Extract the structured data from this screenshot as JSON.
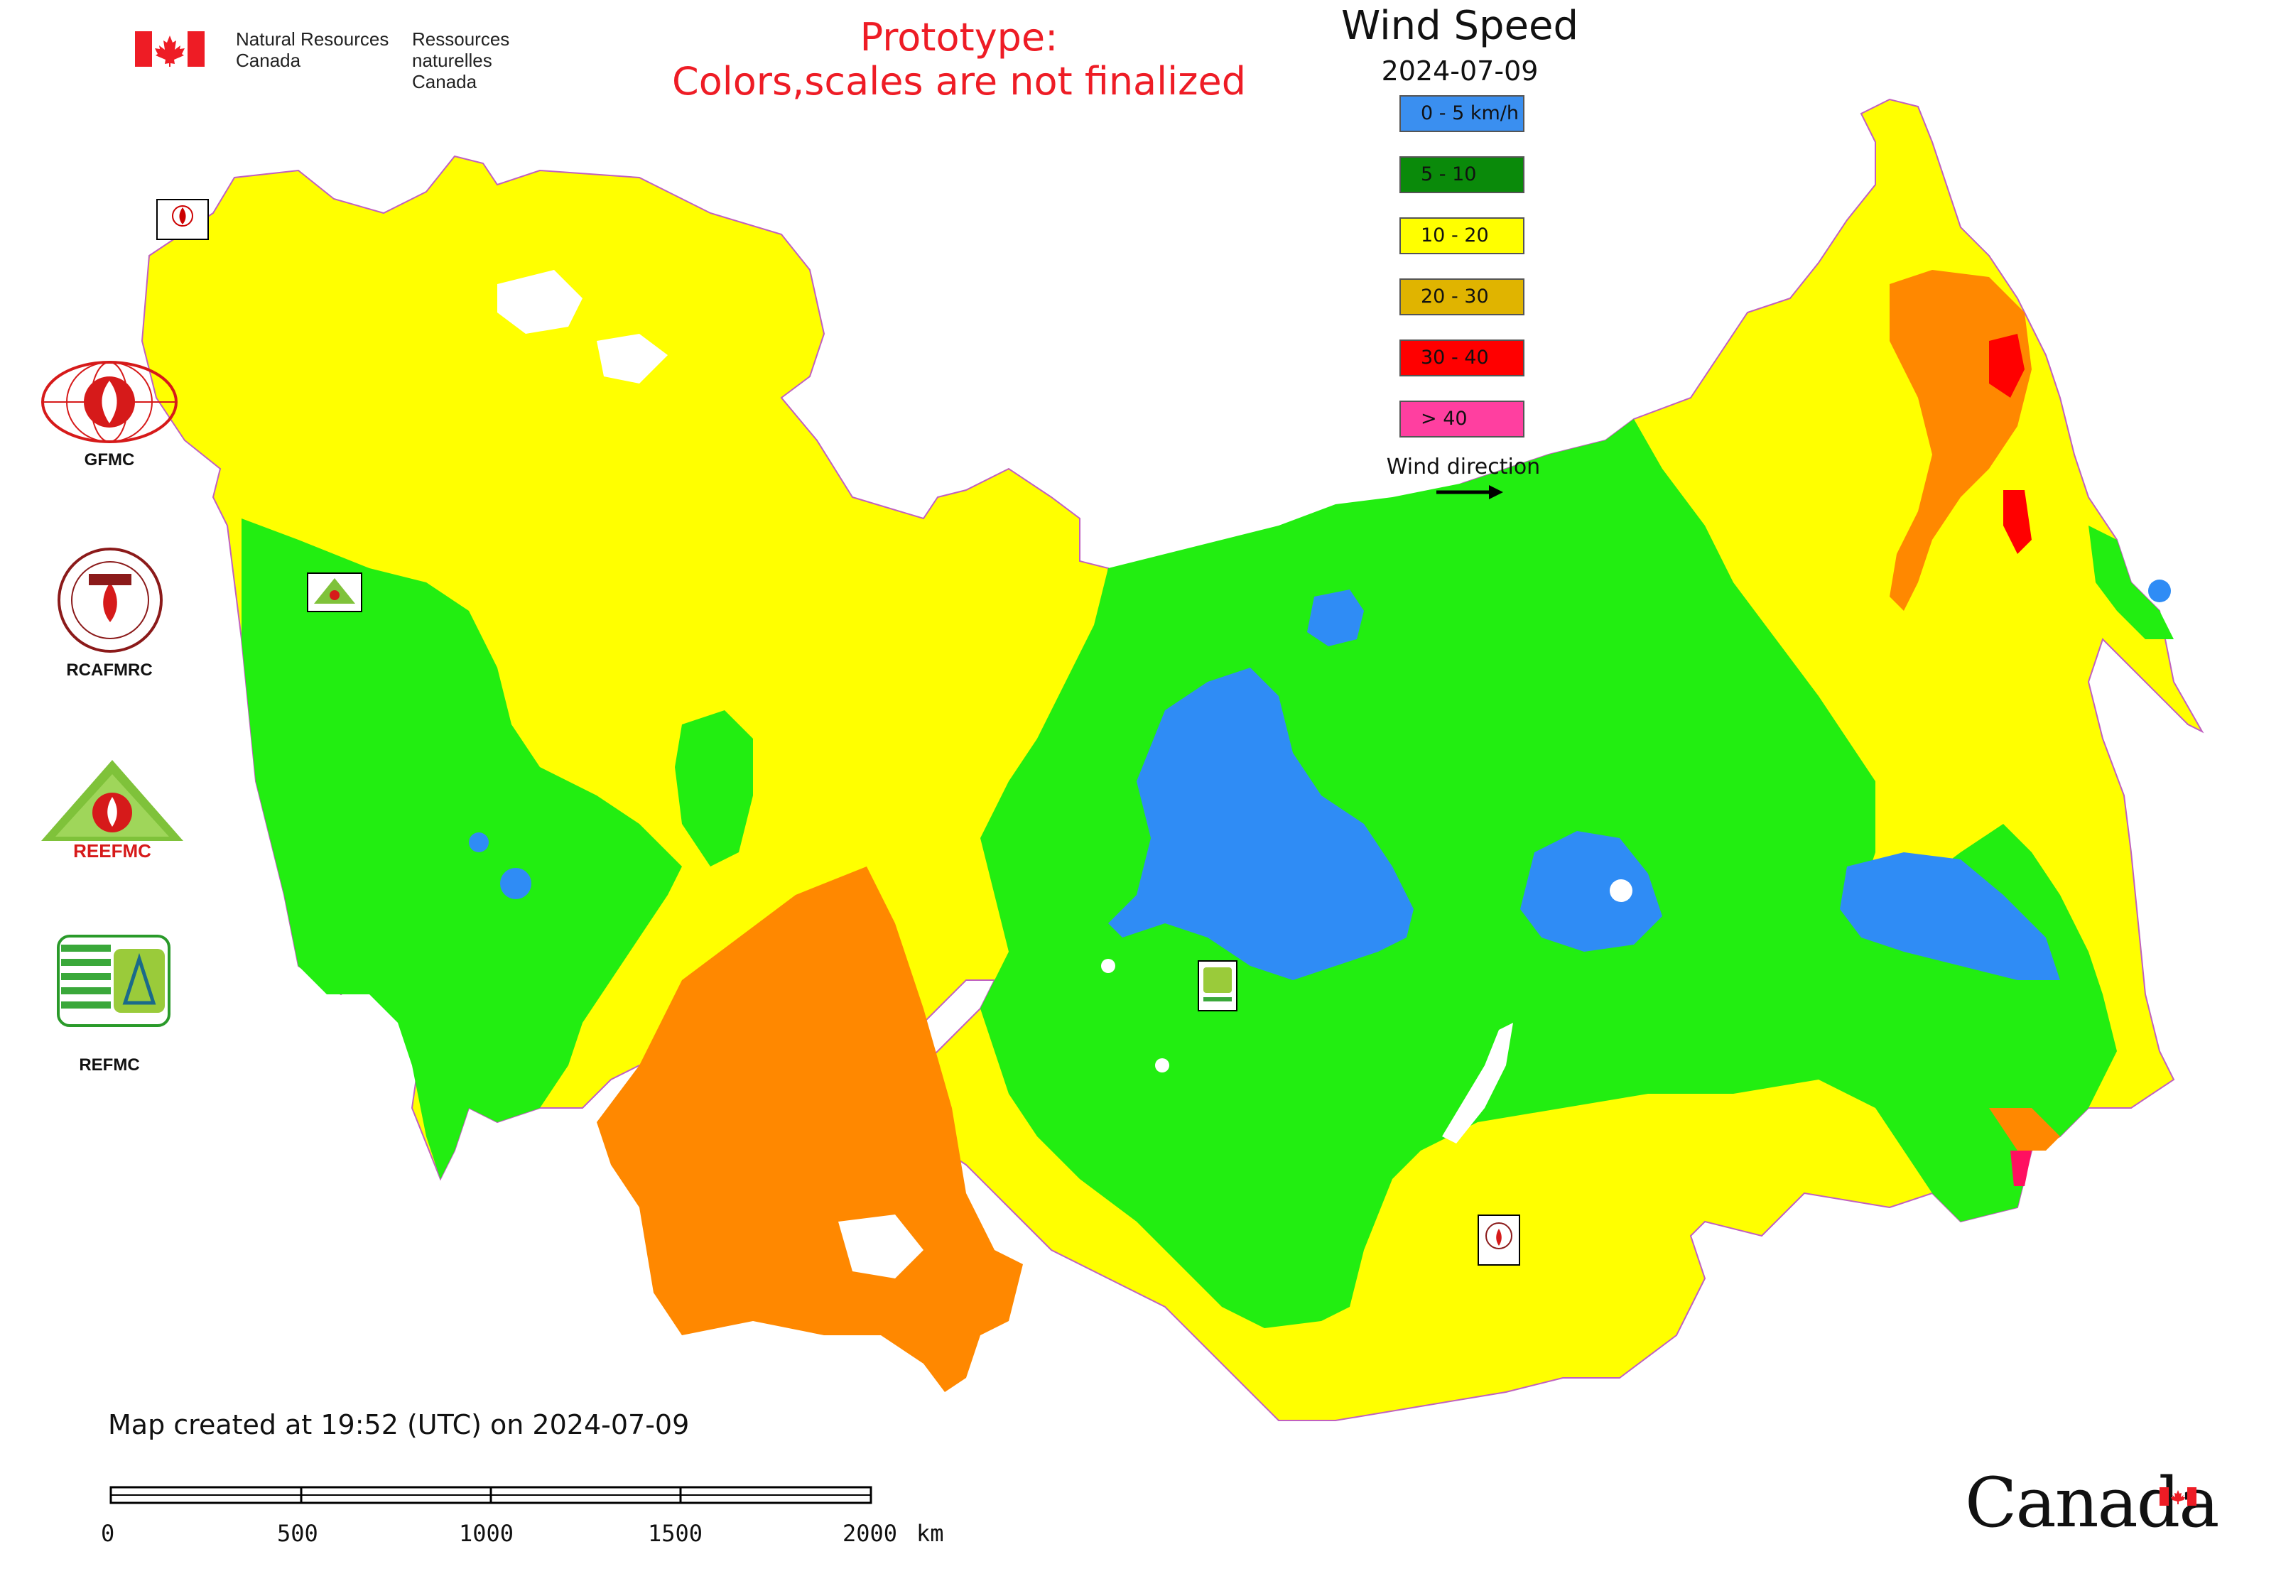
{
  "header": {
    "org_en_line1": "Natural Resources",
    "org_en_line2": "Canada",
    "org_fr_line1": "Ressources naturelles",
    "org_fr_line2": "Canada",
    "prototype_line1": "Prototype:",
    "prototype_line2": "Colors,scales are not finalized"
  },
  "map": {
    "title": "Wind Speed",
    "date": "2024-07-09"
  },
  "legend": {
    "items": [
      {
        "label": "0 - 5 km/h",
        "color": "#3a8ff0"
      },
      {
        "label": "5 - 10",
        "color": "#0a8a0a"
      },
      {
        "label": "10 - 20",
        "color": "#ffff00"
      },
      {
        "label": "20 - 30",
        "color": "#e0b400"
      },
      {
        "label": "30 - 40",
        "color": "#ff0000"
      },
      {
        "label": "> 40",
        "color": "#ff3fa0"
      }
    ],
    "wind_direction_label": "Wind direction"
  },
  "zone_colors": {
    "calm": "#2f8cf5",
    "light": "#22ee11",
    "moderate": "#ffff00",
    "strong": "#ff8800",
    "very_strong": "#ff0000",
    "extreme": "#ff1060"
  },
  "orgs": [
    {
      "label": "GFMC",
      "icon": "gfmc-logo-icon"
    },
    {
      "label": "RCAFMRC",
      "icon": "rcafmrc-logo-icon"
    },
    {
      "label": "",
      "icon": "reefmc-logo-icon",
      "logo_text": "REEFMC"
    },
    {
      "label": "REFMC",
      "icon": "refmc-logo-icon"
    }
  ],
  "footer": {
    "created": "Map created at 19:52 (UTC) on 2024-07-09",
    "scale_ticks": [
      "0",
      "500",
      "1000",
      "1500",
      "2000"
    ],
    "scale_unit": "km",
    "wordmark": "Canada"
  }
}
